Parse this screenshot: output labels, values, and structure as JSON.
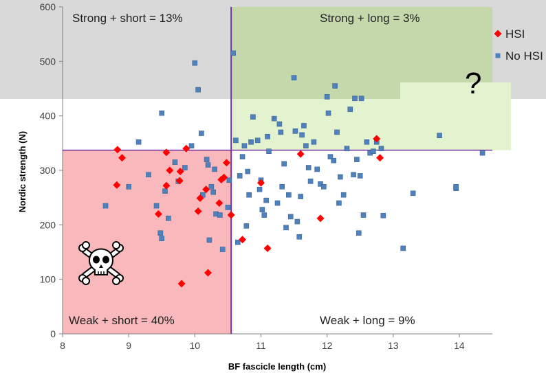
{
  "chart_data": {
    "type": "scatter",
    "title": "",
    "xlabel": "BF fascicle length (cm)",
    "ylabel": "Nordic strength (N)",
    "xlim": [
      8,
      14.5
    ],
    "ylim": [
      0,
      600
    ],
    "x_ticks": [
      "8",
      "9",
      "10",
      "11",
      "12",
      "13",
      "14"
    ],
    "y_ticks": [
      "0",
      "100",
      "200",
      "300",
      "400",
      "500",
      "600"
    ],
    "grid": false,
    "legend": "top-right",
    "thresholds": {
      "x": 10.55,
      "y": 337
    },
    "regions": {
      "strong_short": "Strong + short = 13%",
      "strong_long": "Strong + long = 3%",
      "weak_short": "Weak + short = 40%",
      "weak_long": "Weak + long = 9%"
    },
    "annotation": "?",
    "colors": {
      "hsi": "#ff0000",
      "no_hsi": "#4f81bd",
      "threshold_line": "#7030a0",
      "strong_band": "#d9d9d9",
      "strong_long": "#c4d8ac",
      "weak_short": "#f9b8bb",
      "question_zone": "#e3f2cf"
    },
    "series": [
      {
        "name": "HSI",
        "marker": "diamond",
        "points": [
          [
            8.83,
            338
          ],
          [
            8.9,
            323
          ],
          [
            8.82,
            273
          ],
          [
            9.57,
            333
          ],
          [
            9.87,
            340
          ],
          [
            9.62,
            300
          ],
          [
            9.78,
            298
          ],
          [
            9.77,
            281
          ],
          [
            9.57,
            272
          ],
          [
            9.45,
            220
          ],
          [
            9.8,
            92
          ],
          [
            10.2,
            112
          ],
          [
            10.05,
            225
          ],
          [
            10.08,
            249
          ],
          [
            10.17,
            265
          ],
          [
            10.37,
            240
          ],
          [
            10.4,
            283
          ],
          [
            10.44,
            287
          ],
          [
            10.48,
            314
          ],
          [
            10.55,
            218
          ],
          [
            10.72,
            173
          ],
          [
            11.0,
            277
          ],
          [
            11.1,
            157
          ],
          [
            11.6,
            330
          ],
          [
            11.9,
            212
          ],
          [
            12.75,
            358
          ],
          [
            12.8,
            323
          ]
        ]
      },
      {
        "name": "No HSI",
        "marker": "square",
        "points": [
          [
            8.65,
            235
          ],
          [
            9.0,
            270
          ],
          [
            9.15,
            352
          ],
          [
            9.3,
            292
          ],
          [
            9.42,
            235
          ],
          [
            9.48,
            185
          ],
          [
            9.5,
            175
          ],
          [
            9.5,
            405
          ],
          [
            9.55,
            262
          ],
          [
            9.6,
            212
          ],
          [
            9.7,
            315
          ],
          [
            9.75,
            280
          ],
          [
            9.85,
            305
          ],
          [
            9.95,
            345
          ],
          [
            10.0,
            497
          ],
          [
            10.05,
            448
          ],
          [
            10.1,
            368
          ],
          [
            10.12,
            255
          ],
          [
            10.18,
            320
          ],
          [
            10.2,
            310
          ],
          [
            10.22,
            172
          ],
          [
            10.25,
            270
          ],
          [
            10.28,
            260
          ],
          [
            10.3,
            302
          ],
          [
            10.32,
            220
          ],
          [
            10.38,
            218
          ],
          [
            10.42,
            155
          ],
          [
            10.5,
            232
          ],
          [
            10.52,
            282
          ],
          [
            10.58,
            515
          ],
          [
            10.62,
            355
          ],
          [
            10.65,
            168
          ],
          [
            10.68,
            290
          ],
          [
            10.72,
            325
          ],
          [
            10.75,
            345
          ],
          [
            10.78,
            198
          ],
          [
            10.8,
            298
          ],
          [
            10.82,
            255
          ],
          [
            10.85,
            352
          ],
          [
            10.88,
            398
          ],
          [
            10.95,
            355
          ],
          [
            10.98,
            265
          ],
          [
            11.0,
            282
          ],
          [
            11.02,
            228
          ],
          [
            11.05,
            218
          ],
          [
            11.08,
            245
          ],
          [
            11.1,
            362
          ],
          [
            11.12,
            335
          ],
          [
            11.2,
            395
          ],
          [
            11.25,
            240
          ],
          [
            11.28,
            385
          ],
          [
            11.3,
            370
          ],
          [
            11.32,
            270
          ],
          [
            11.35,
            312
          ],
          [
            11.38,
            195
          ],
          [
            11.42,
            255
          ],
          [
            11.45,
            215
          ],
          [
            11.5,
            470
          ],
          [
            11.52,
            372
          ],
          [
            11.55,
            206
          ],
          [
            11.58,
            178
          ],
          [
            11.6,
            252
          ],
          [
            11.62,
            365
          ],
          [
            11.65,
            382
          ],
          [
            11.68,
            345
          ],
          [
            11.72,
            305
          ],
          [
            11.75,
            280
          ],
          [
            11.8,
            352
          ],
          [
            11.85,
            302
          ],
          [
            11.9,
            275
          ],
          [
            11.95,
            270
          ],
          [
            12.0,
            435
          ],
          [
            12.02,
            405
          ],
          [
            12.05,
            325
          ],
          [
            12.1,
            318
          ],
          [
            12.12,
            455
          ],
          [
            12.15,
            370
          ],
          [
            12.18,
            240
          ],
          [
            12.2,
            288
          ],
          [
            12.25,
            255
          ],
          [
            12.3,
            340
          ],
          [
            12.35,
            412
          ],
          [
            12.4,
            292
          ],
          [
            12.42,
            432
          ],
          [
            12.45,
            320
          ],
          [
            12.48,
            185
          ],
          [
            12.5,
            290
          ],
          [
            12.52,
            432
          ],
          [
            12.55,
            218
          ],
          [
            12.6,
            352
          ],
          [
            12.65,
            332
          ],
          [
            12.7,
            335
          ],
          [
            12.75,
            352
          ],
          [
            12.82,
            340
          ],
          [
            12.85,
            217
          ],
          [
            13.15,
            157
          ],
          [
            13.3,
            258
          ],
          [
            13.7,
            364
          ],
          [
            13.95,
            267
          ],
          [
            13.95,
            270
          ],
          [
            14.35,
            332
          ]
        ]
      }
    ]
  }
}
